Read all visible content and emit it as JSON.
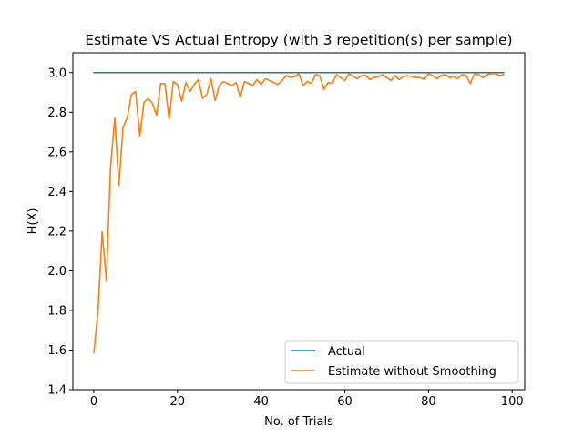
{
  "chart_data": {
    "type": "line",
    "title": "Estimate VS Actual Entropy (with 3 repetition(s) per sample)",
    "xlabel": "No. of Trials",
    "ylabel": "H(X)",
    "xlim": [
      -5,
      103
    ],
    "ylim": [
      1.4,
      3.1
    ],
    "xticks": [
      0,
      20,
      40,
      60,
      80,
      100
    ],
    "yticks": [
      1.4,
      1.6,
      1.8,
      2.0,
      2.2,
      2.4,
      2.6,
      2.8,
      3.0
    ],
    "xtick_labels": [
      "0",
      "20",
      "40",
      "60",
      "80",
      "100"
    ],
    "ytick_labels": [
      "1.4",
      "1.6",
      "1.8",
      "2.0",
      "2.2",
      "2.4",
      "2.6",
      "2.8",
      "3.0"
    ],
    "grid": false,
    "legend_position": "lower-right",
    "series": [
      {
        "name": "Actual",
        "color": "#1f77b4",
        "x_start": 0,
        "values": [
          3.0,
          3.0,
          3.0,
          3.0,
          3.0,
          3.0,
          3.0,
          3.0,
          3.0,
          3.0,
          3.0,
          3.0,
          3.0,
          3.0,
          3.0,
          3.0,
          3.0,
          3.0,
          3.0,
          3.0,
          3.0,
          3.0,
          3.0,
          3.0,
          3.0,
          3.0,
          3.0,
          3.0,
          3.0,
          3.0,
          3.0,
          3.0,
          3.0,
          3.0,
          3.0,
          3.0,
          3.0,
          3.0,
          3.0,
          3.0,
          3.0,
          3.0,
          3.0,
          3.0,
          3.0,
          3.0,
          3.0,
          3.0,
          3.0,
          3.0,
          3.0,
          3.0,
          3.0,
          3.0,
          3.0,
          3.0,
          3.0,
          3.0,
          3.0,
          3.0,
          3.0,
          3.0,
          3.0,
          3.0,
          3.0,
          3.0,
          3.0,
          3.0,
          3.0,
          3.0,
          3.0,
          3.0,
          3.0,
          3.0,
          3.0,
          3.0,
          3.0,
          3.0,
          3.0,
          3.0,
          3.0,
          3.0,
          3.0,
          3.0,
          3.0,
          3.0,
          3.0,
          3.0,
          3.0,
          3.0,
          3.0,
          3.0,
          3.0,
          3.0,
          3.0,
          3.0,
          3.0,
          3.0,
          3.0
        ]
      },
      {
        "name": "Estimate without Smoothing",
        "color": "#ff7f0e",
        "x_start": 0,
        "values": [
          1.585,
          1.792,
          2.197,
          1.95,
          2.52,
          2.772,
          2.43,
          2.725,
          2.772,
          2.89,
          2.905,
          2.68,
          2.85,
          2.87,
          2.845,
          2.785,
          2.945,
          2.945,
          2.765,
          2.955,
          2.94,
          2.855,
          2.95,
          2.905,
          2.94,
          2.965,
          2.87,
          2.89,
          2.97,
          2.86,
          2.935,
          2.955,
          2.945,
          2.935,
          2.95,
          2.875,
          2.955,
          2.945,
          2.935,
          2.965,
          2.94,
          2.97,
          2.96,
          2.95,
          2.94,
          2.96,
          2.985,
          2.975,
          2.98,
          2.995,
          2.935,
          2.955,
          2.945,
          2.99,
          2.985,
          2.915,
          2.95,
          2.945,
          2.99,
          2.975,
          2.96,
          2.995,
          2.98,
          2.97,
          2.985,
          2.985,
          2.965,
          2.975,
          2.98,
          2.99,
          2.975,
          2.96,
          2.985,
          2.965,
          2.98,
          2.985,
          2.98,
          2.975,
          2.975,
          2.965,
          2.995,
          2.985,
          2.97,
          2.985,
          2.99,
          2.975,
          2.98,
          2.97,
          2.99,
          2.985,
          2.945,
          2.995,
          2.99,
          2.975,
          2.99,
          2.995,
          2.995,
          2.985,
          2.99
        ]
      }
    ]
  }
}
